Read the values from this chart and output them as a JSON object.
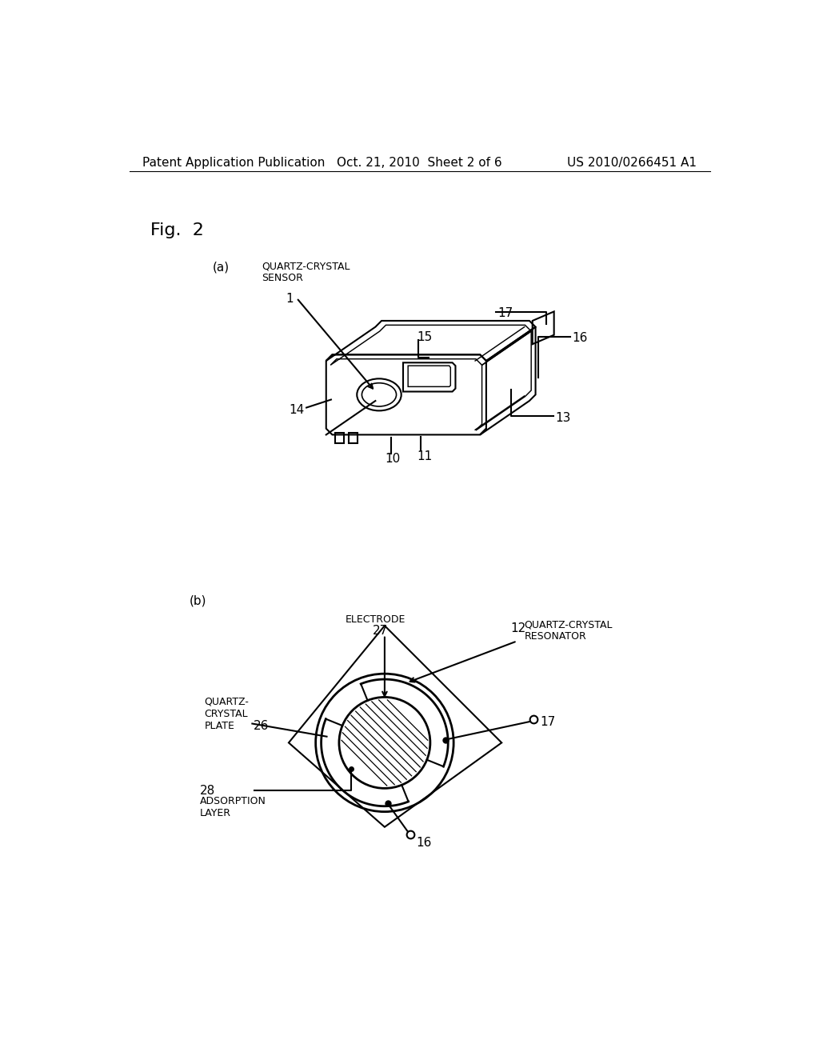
{
  "bg_color": "#ffffff",
  "text_color": "#000000",
  "header_left": "Patent Application Publication",
  "header_center": "Oct. 21, 2010  Sheet 2 of 6",
  "header_right": "US 2010/0266451 A1",
  "fig_label": "Fig.  2",
  "sub_a_label": "(a)",
  "sub_b_label": "(b)",
  "label_quartz_crystal_sensor": "QUARTZ-CRYSTAL\nSENSOR",
  "label_quartz_crystal_resonator": "QUARTZ-CRYSTAL\nRESONATOR",
  "label_electrode": "ELECTRODE",
  "label_quartz_crystal_plate": "QUARTZ-\nCRYSTAL\nPLATE",
  "label_adsorption_layer": "ADSORPTION\nLAYER"
}
